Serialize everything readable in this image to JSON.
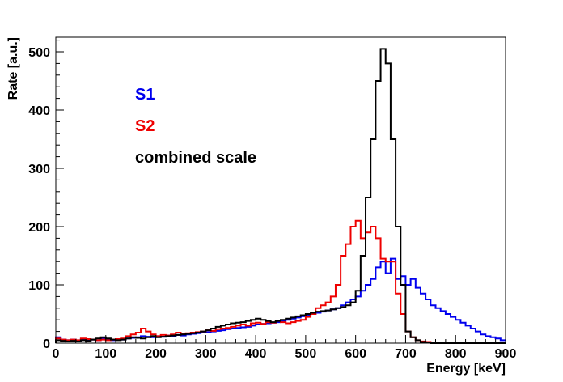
{
  "chart_data": {
    "type": "line",
    "title": "",
    "xlabel": "Energy [keV]",
    "ylabel": "Rate [a.u.]",
    "xlim": [
      0,
      900
    ],
    "ylim": [
      0,
      525
    ],
    "xticks": [
      "0",
      "100",
      "200",
      "300",
      "400",
      "500",
      "600",
      "700",
      "800",
      "900"
    ],
    "yticks": [
      "0",
      "100",
      "200",
      "300",
      "400",
      "500"
    ],
    "grid": false,
    "legend_position": "top-left",
    "bin_width": 10,
    "series": [
      {
        "name": "S1",
        "color": "#0000ee",
        "style": "step",
        "x": [
          0,
          10,
          20,
          30,
          40,
          50,
          60,
          70,
          80,
          90,
          100,
          110,
          120,
          130,
          140,
          150,
          160,
          170,
          180,
          190,
          200,
          210,
          220,
          230,
          240,
          250,
          260,
          270,
          280,
          290,
          300,
          310,
          320,
          330,
          340,
          350,
          360,
          370,
          380,
          390,
          400,
          410,
          420,
          430,
          440,
          450,
          460,
          470,
          480,
          490,
          500,
          510,
          520,
          530,
          540,
          550,
          560,
          570,
          580,
          590,
          600,
          610,
          620,
          630,
          640,
          650,
          660,
          670,
          680,
          690,
          700,
          710,
          720,
          730,
          740,
          750,
          760,
          770,
          780,
          790,
          800,
          810,
          820,
          830,
          840,
          850,
          860,
          870,
          880,
          890
        ],
        "y": [
          10,
          6,
          5,
          6,
          4,
          7,
          5,
          6,
          5,
          8,
          6,
          5,
          7,
          6,
          8,
          9,
          10,
          12,
          11,
          10,
          12,
          11,
          13,
          12,
          14,
          13,
          15,
          16,
          17,
          18,
          19,
          20,
          21,
          22,
          24,
          25,
          26,
          27,
          28,
          30,
          32,
          33,
          34,
          35,
          36,
          38,
          40,
          42,
          44,
          46,
          48,
          50,
          52,
          54,
          56,
          58,
          60,
          65,
          70,
          75,
          80,
          90,
          100,
          110,
          130,
          140,
          120,
          145,
          110,
          115,
          100,
          110,
          95,
          85,
          75,
          65,
          60,
          55,
          50,
          45,
          40,
          35,
          30,
          25,
          20,
          15,
          12,
          10,
          8,
          5
        ]
      },
      {
        "name": "S2",
        "color": "#ee0000",
        "style": "step",
        "x": [
          0,
          10,
          20,
          30,
          40,
          50,
          60,
          70,
          80,
          90,
          100,
          110,
          120,
          130,
          140,
          150,
          160,
          170,
          180,
          190,
          200,
          210,
          220,
          230,
          240,
          250,
          260,
          270,
          280,
          290,
          300,
          310,
          320,
          330,
          340,
          350,
          360,
          370,
          380,
          390,
          400,
          410,
          420,
          430,
          440,
          450,
          460,
          470,
          480,
          490,
          500,
          510,
          520,
          530,
          540,
          550,
          560,
          570,
          580,
          590,
          600,
          610,
          620,
          630,
          640,
          650,
          660,
          670,
          680,
          690,
          700,
          710,
          720,
          730,
          740,
          750,
          760,
          770,
          780,
          790,
          800,
          810,
          820,
          830,
          840,
          850,
          860,
          870,
          880,
          890
        ],
        "y": [
          8,
          6,
          5,
          6,
          5,
          8,
          7,
          6,
          5,
          6,
          5,
          6,
          7,
          8,
          12,
          15,
          18,
          25,
          20,
          15,
          12,
          14,
          13,
          15,
          18,
          16,
          17,
          18,
          19,
          20,
          22,
          21,
          24,
          25,
          26,
          28,
          30,
          32,
          30,
          34,
          35,
          33,
          36,
          35,
          38,
          36,
          34,
          36,
          38,
          40,
          45,
          50,
          60,
          65,
          70,
          80,
          100,
          150,
          170,
          200,
          210,
          180,
          190,
          200,
          180,
          145,
          140,
          140,
          85,
          50,
          20,
          10,
          5,
          3,
          2,
          1,
          0,
          0,
          0,
          0,
          0,
          0,
          0,
          0,
          0,
          0,
          0,
          0,
          0,
          0
        ]
      },
      {
        "name": "combined scale",
        "color": "#000000",
        "style": "step",
        "x": [
          0,
          10,
          20,
          30,
          40,
          50,
          60,
          70,
          80,
          90,
          100,
          110,
          120,
          130,
          140,
          150,
          160,
          170,
          180,
          190,
          200,
          210,
          220,
          230,
          240,
          250,
          260,
          270,
          280,
          290,
          300,
          310,
          320,
          330,
          340,
          350,
          360,
          370,
          380,
          390,
          400,
          410,
          420,
          430,
          440,
          450,
          460,
          470,
          480,
          490,
          500,
          510,
          520,
          530,
          540,
          550,
          560,
          570,
          580,
          590,
          600,
          610,
          620,
          630,
          640,
          650,
          660,
          670,
          680,
          690,
          700,
          710,
          720,
          730,
          740,
          750,
          760,
          770,
          780,
          790,
          800,
          810,
          820,
          830,
          840,
          850,
          860,
          870,
          880,
          890
        ],
        "y": [
          5,
          4,
          3,
          4,
          3,
          5,
          4,
          6,
          8,
          10,
          8,
          6,
          5,
          6,
          8,
          10,
          9,
          8,
          10,
          12,
          10,
          11,
          12,
          13,
          14,
          15,
          16,
          17,
          18,
          20,
          22,
          25,
          28,
          30,
          32,
          34,
          35,
          36,
          38,
          40,
          42,
          40,
          38,
          36,
          38,
          40,
          42,
          44,
          46,
          48,
          50,
          52,
          54,
          55,
          56,
          58,
          60,
          62,
          65,
          70,
          90,
          150,
          250,
          350,
          450,
          505,
          480,
          350,
          200,
          100,
          20,
          10,
          5,
          2,
          1,
          0,
          0,
          0,
          0,
          0,
          0,
          0,
          0,
          0,
          0,
          0,
          0,
          0,
          0,
          0
        ]
      }
    ]
  }
}
